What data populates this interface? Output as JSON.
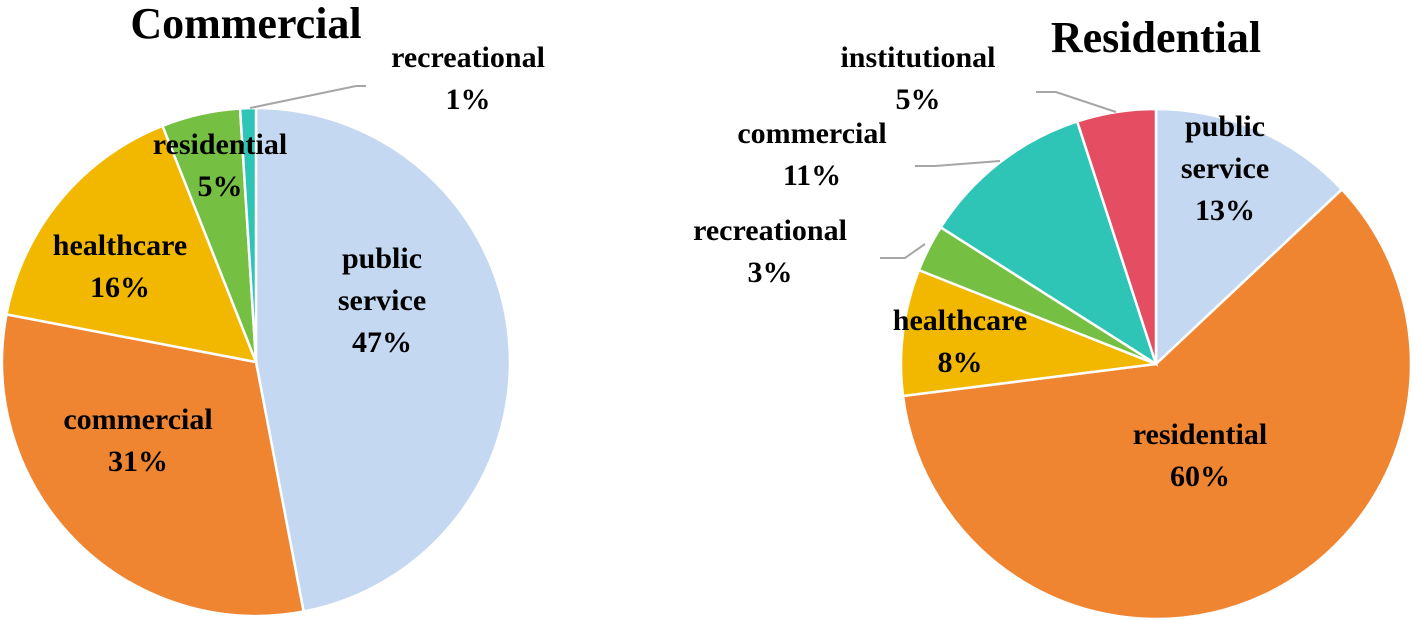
{
  "chart_data": [
    {
      "type": "pie",
      "title": "Commercial",
      "slices": [
        {
          "label": [
            "public",
            "service"
          ],
          "percent_label": "47%",
          "value": 47,
          "color": "#c5d8f1"
        },
        {
          "label": [
            "commercial"
          ],
          "percent_label": "31%",
          "value": 31,
          "color": "#ef8431"
        },
        {
          "label": [
            "healthcare"
          ],
          "percent_label": "16%",
          "value": 16,
          "color": "#f2b800"
        },
        {
          "label": [
            "residential"
          ],
          "percent_label": "5%",
          "value": 5,
          "color": "#75bf43"
        },
        {
          "label": [
            "recreational"
          ],
          "percent_label": "1%",
          "value": 1,
          "color": "#2ec4b6"
        }
      ]
    },
    {
      "type": "pie",
      "title": "Residential",
      "slices": [
        {
          "label": [
            "public",
            "service"
          ],
          "percent_label": "13%",
          "value": 13,
          "color": "#c5d8f1"
        },
        {
          "label": [
            "residential"
          ],
          "percent_label": "60%",
          "value": 60,
          "color": "#ef8431"
        },
        {
          "label": [
            "healthcare"
          ],
          "percent_label": "8%",
          "value": 8,
          "color": "#f2b800"
        },
        {
          "label": [
            "recreational"
          ],
          "percent_label": "3%",
          "value": 3,
          "color": "#75bf43"
        },
        {
          "label": [
            "commercial"
          ],
          "percent_label": "11%",
          "value": 11,
          "color": "#2ec4b6"
        },
        {
          "label": [
            "institutional"
          ],
          "percent_label": "5%",
          "value": 5,
          "color": "#e54e62"
        }
      ]
    }
  ]
}
